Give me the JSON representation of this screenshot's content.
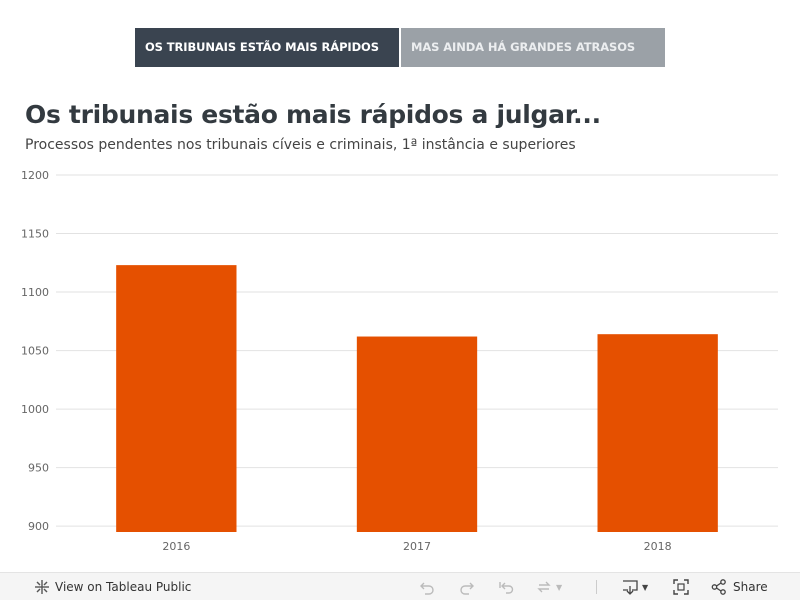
{
  "tabs": [
    {
      "label": "OS TRIBUNAIS ESTÃO MAIS RÁPIDOS",
      "active": true
    },
    {
      "label": "MAS AINDA HÁ GRANDES ATRASOS",
      "active": false
    }
  ],
  "header": {
    "title": "Os tribunais estão mais rápidos a julgar...",
    "subtitle": "Processos pendentes nos tribunais cíveis e criminais, 1ª instância e superiores"
  },
  "chart_data": {
    "type": "bar",
    "categories": [
      "2016",
      "2017",
      "2018"
    ],
    "values": [
      1123,
      1062,
      1064
    ],
    "ylim": [
      895,
      1200
    ],
    "yticks": [
      900,
      950,
      1000,
      1050,
      1100,
      1150,
      1200
    ],
    "grid": true,
    "bar_color": "#e55000",
    "legend": "none"
  },
  "toolbar": {
    "view_label": "View on Tableau Public",
    "share_label": "Share",
    "icons": [
      "tableau-icon",
      "undo-icon",
      "redo-icon",
      "revert-icon",
      "refresh-icon",
      "download-icon",
      "fullscreen-icon",
      "share-icon"
    ]
  },
  "colors": {
    "tab_active_bg": "#3a4450",
    "tab_inactive_bg": "#9ba1a7",
    "bar": "#e55000",
    "gridline": "#e2e2e2"
  }
}
